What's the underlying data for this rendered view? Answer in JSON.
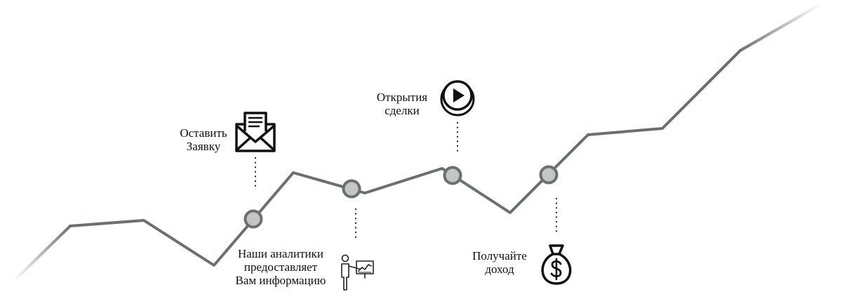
{
  "steps": [
    {
      "id": "apply",
      "lines": [
        "Оставить",
        "Заявку"
      ],
      "icon": "envelope-icon"
    },
    {
      "id": "analytics",
      "lines": [
        "Наши аналитики",
        "предоставляет",
        "Вам информацию"
      ],
      "icon": "presenter-chart-icon"
    },
    {
      "id": "open",
      "lines": [
        "Открытия",
        "сделки"
      ],
      "icon": "play-button-icon"
    },
    {
      "id": "income",
      "lines": [
        "Получайте",
        "доход"
      ],
      "icon": "money-bag-icon"
    }
  ],
  "colors": {
    "line": "#6a716d",
    "node_fill": "#c4c6c5",
    "node_stroke": "#6a716d",
    "ink": "#111111"
  }
}
